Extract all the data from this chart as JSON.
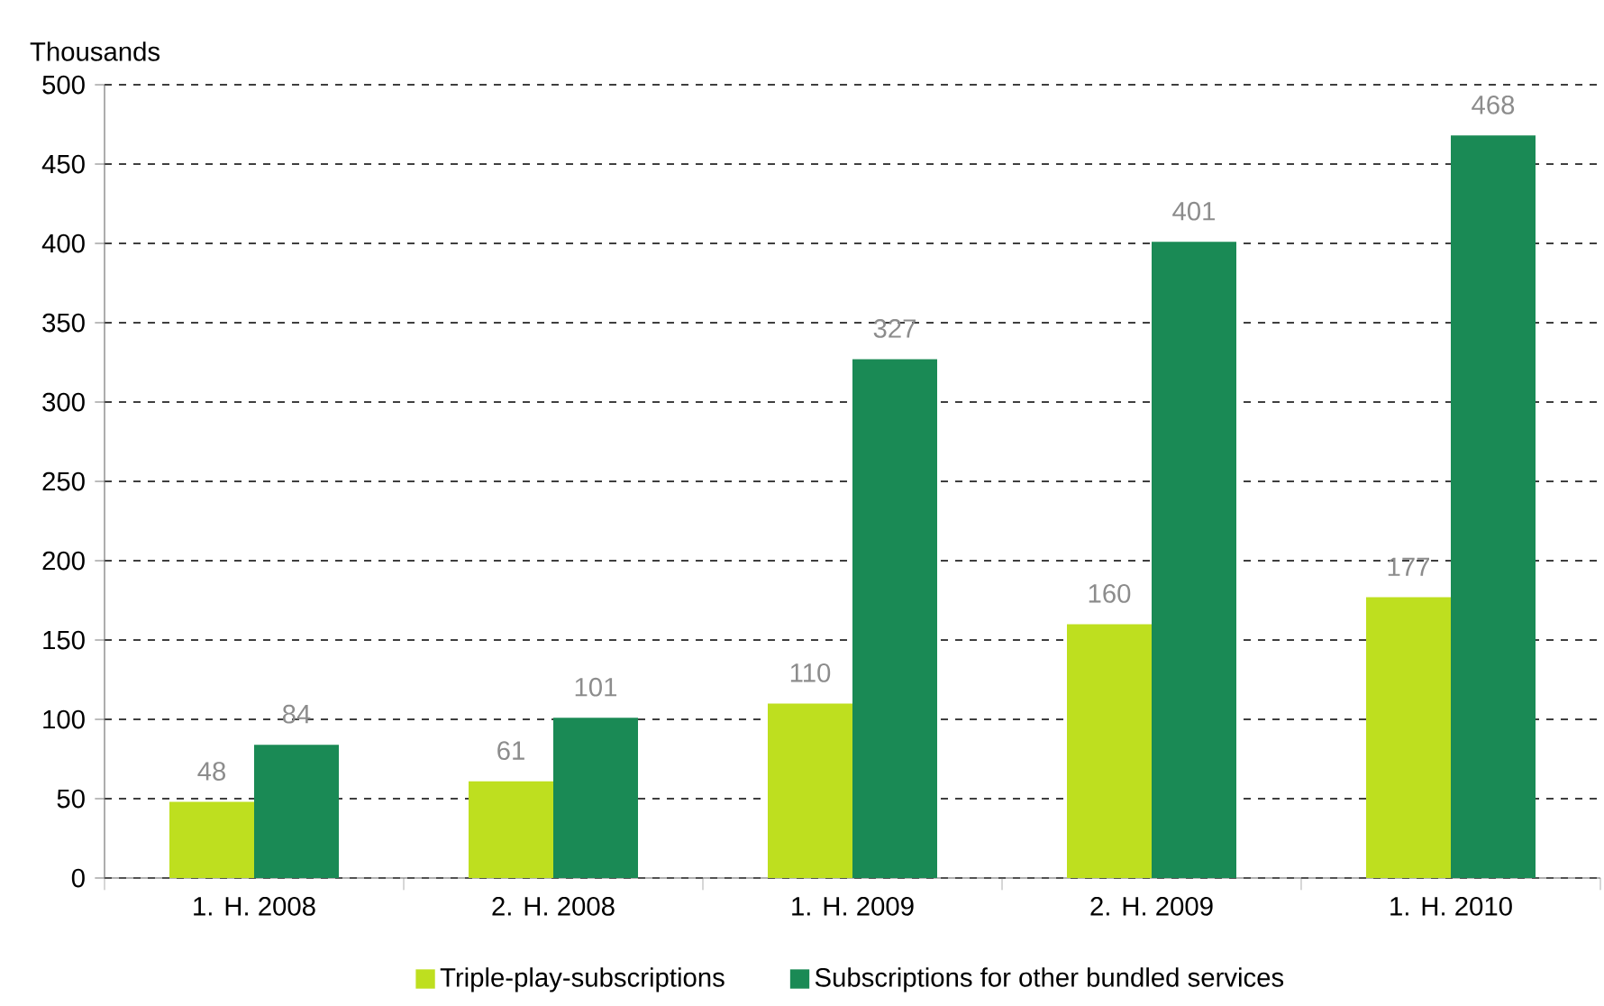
{
  "chart_data": {
    "type": "bar",
    "ylabel": "Thousands",
    "categories": [
      "1. H. 2008",
      "2. H. 2008",
      "1. H. 2009",
      "2. H. 2009",
      "1. H. 2010"
    ],
    "series": [
      {
        "name": "Triple-play-subscriptions",
        "color": "#bedf1f",
        "values": [
          48,
          61,
          110,
          160,
          177
        ]
      },
      {
        "name": "Subscriptions for other bundled services",
        "color": "#1a8a55",
        "values": [
          84,
          101,
          327,
          401,
          468
        ]
      }
    ],
    "ylim": [
      0,
      500
    ],
    "yticks": [
      0,
      50,
      100,
      150,
      200,
      250,
      300,
      350,
      400,
      450,
      500
    ],
    "grid": "y",
    "legend": "bottom",
    "data_labels": true
  }
}
